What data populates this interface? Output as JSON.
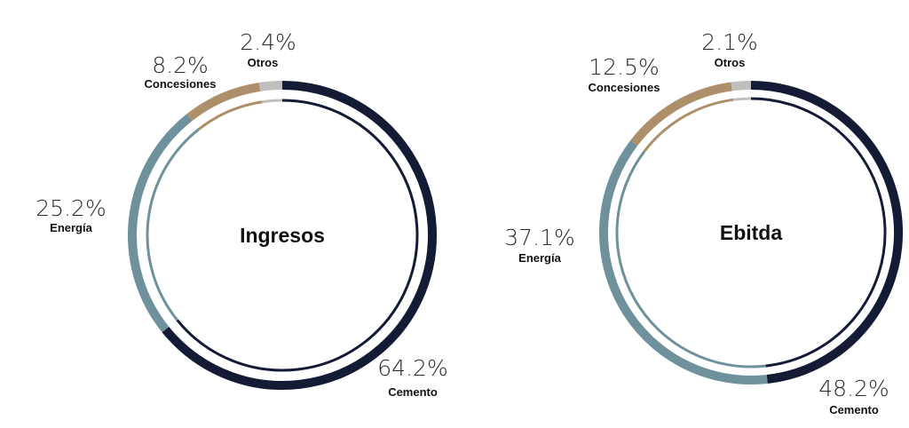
{
  "chart_data": [
    {
      "type": "pie",
      "title": "Ingresos",
      "categories": [
        "Cemento",
        "Energía",
        "Concesiones",
        "Otros"
      ],
      "values": [
        64.2,
        25.2,
        8.2,
        2.4
      ],
      "value_labels": [
        "64.2%",
        "25.2%",
        "8.2%",
        "2.4%"
      ],
      "colors": [
        "#141b35",
        "#6f919c",
        "#ad9069",
        "#bfbfbf"
      ]
    },
    {
      "type": "pie",
      "title": "Ebitda",
      "categories": [
        "Cemento",
        "Energía",
        "Concesiones",
        "Otros"
      ],
      "values": [
        48.2,
        37.1,
        12.5,
        2.1
      ],
      "value_labels": [
        "48.2%",
        "37.1%",
        "12.5%",
        "2.1%"
      ],
      "colors": [
        "#141b35",
        "#6f919c",
        "#ad9069",
        "#bfbfbf"
      ]
    }
  ]
}
